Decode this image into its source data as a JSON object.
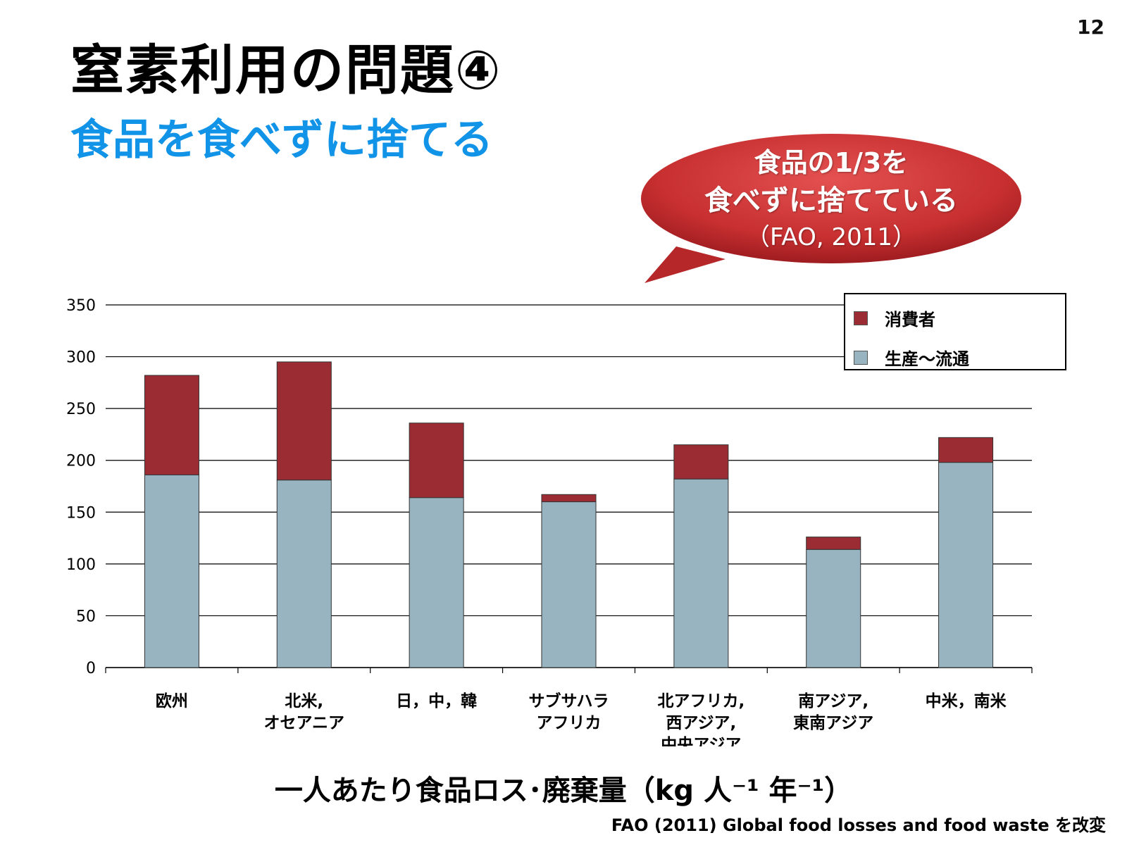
{
  "slide": {
    "page_number": "12",
    "title": "窒素利用の問題④",
    "subtitle": "食品を食べずに捨てる",
    "callout_line1": "食品の1/3を",
    "callout_line2": "食べずに捨てている",
    "callout_line3": "（FAO, 2011）",
    "source": "FAO (2011) Global food losses and food waste を改変"
  },
  "colors": {
    "consumer": "#9b2c33",
    "production": "#98b4c0",
    "callout": "#cc3333",
    "subtitle": "#1193e8"
  },
  "chart_data": {
    "type": "bar",
    "stacked": true,
    "categories": [
      [
        "欧州"
      ],
      [
        "北米,",
        "オセアニア"
      ],
      [
        "日，中，韓"
      ],
      [
        "サブサハラ",
        "アフリカ"
      ],
      [
        "北アフリカ,",
        "西アジア,",
        "中央アジア"
      ],
      [
        "南アジア,",
        "東南アジア"
      ],
      [
        "中米，南米"
      ]
    ],
    "series": [
      {
        "name": "生産～流通",
        "values": [
          186,
          181,
          164,
          160,
          182,
          114,
          198
        ]
      },
      {
        "name": "消費者",
        "values": [
          96,
          114,
          72,
          7,
          33,
          12,
          24
        ]
      }
    ],
    "xlabel": "一人あたり食品ロス･廃棄量（kg 人⁻¹ 年⁻¹）",
    "ylabel": "",
    "ylim": [
      0,
      350
    ],
    "yticks": [
      0,
      50,
      100,
      150,
      200,
      250,
      300,
      350
    ],
    "grid": true,
    "legend": {
      "position": "top-right",
      "items": [
        "消費者",
        "生産～流通"
      ]
    }
  }
}
